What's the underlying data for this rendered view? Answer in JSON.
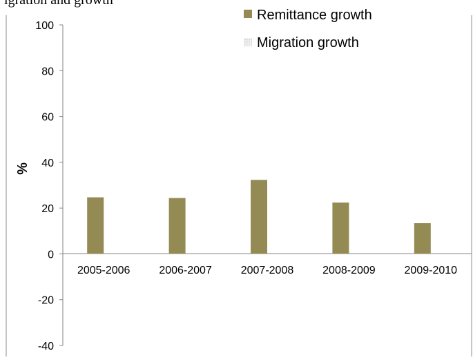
{
  "chart_data": {
    "type": "bar",
    "title": "igration and growth",
    "categories": [
      "2005-2006",
      "2006-2007",
      "2007-2008",
      "2008-2009",
      "2009-2010"
    ],
    "series": [
      {
        "name": "Remittance growth",
        "values": [
          24.7,
          24.4,
          32.3,
          22.4,
          13.4
        ],
        "color": "#948a54",
        "pattern": "solid"
      },
      {
        "name": "Migration growth",
        "values": [
          null,
          null,
          null,
          null,
          null
        ],
        "color": "#a6a6a6",
        "pattern": "dotted"
      }
    ],
    "ylabel": "%",
    "xlabel": "",
    "ylim": [
      -40,
      100
    ],
    "yticks": [
      -40,
      -20,
      0,
      20,
      40,
      60,
      80,
      100
    ],
    "grid": false,
    "legend_position": "top-right"
  }
}
